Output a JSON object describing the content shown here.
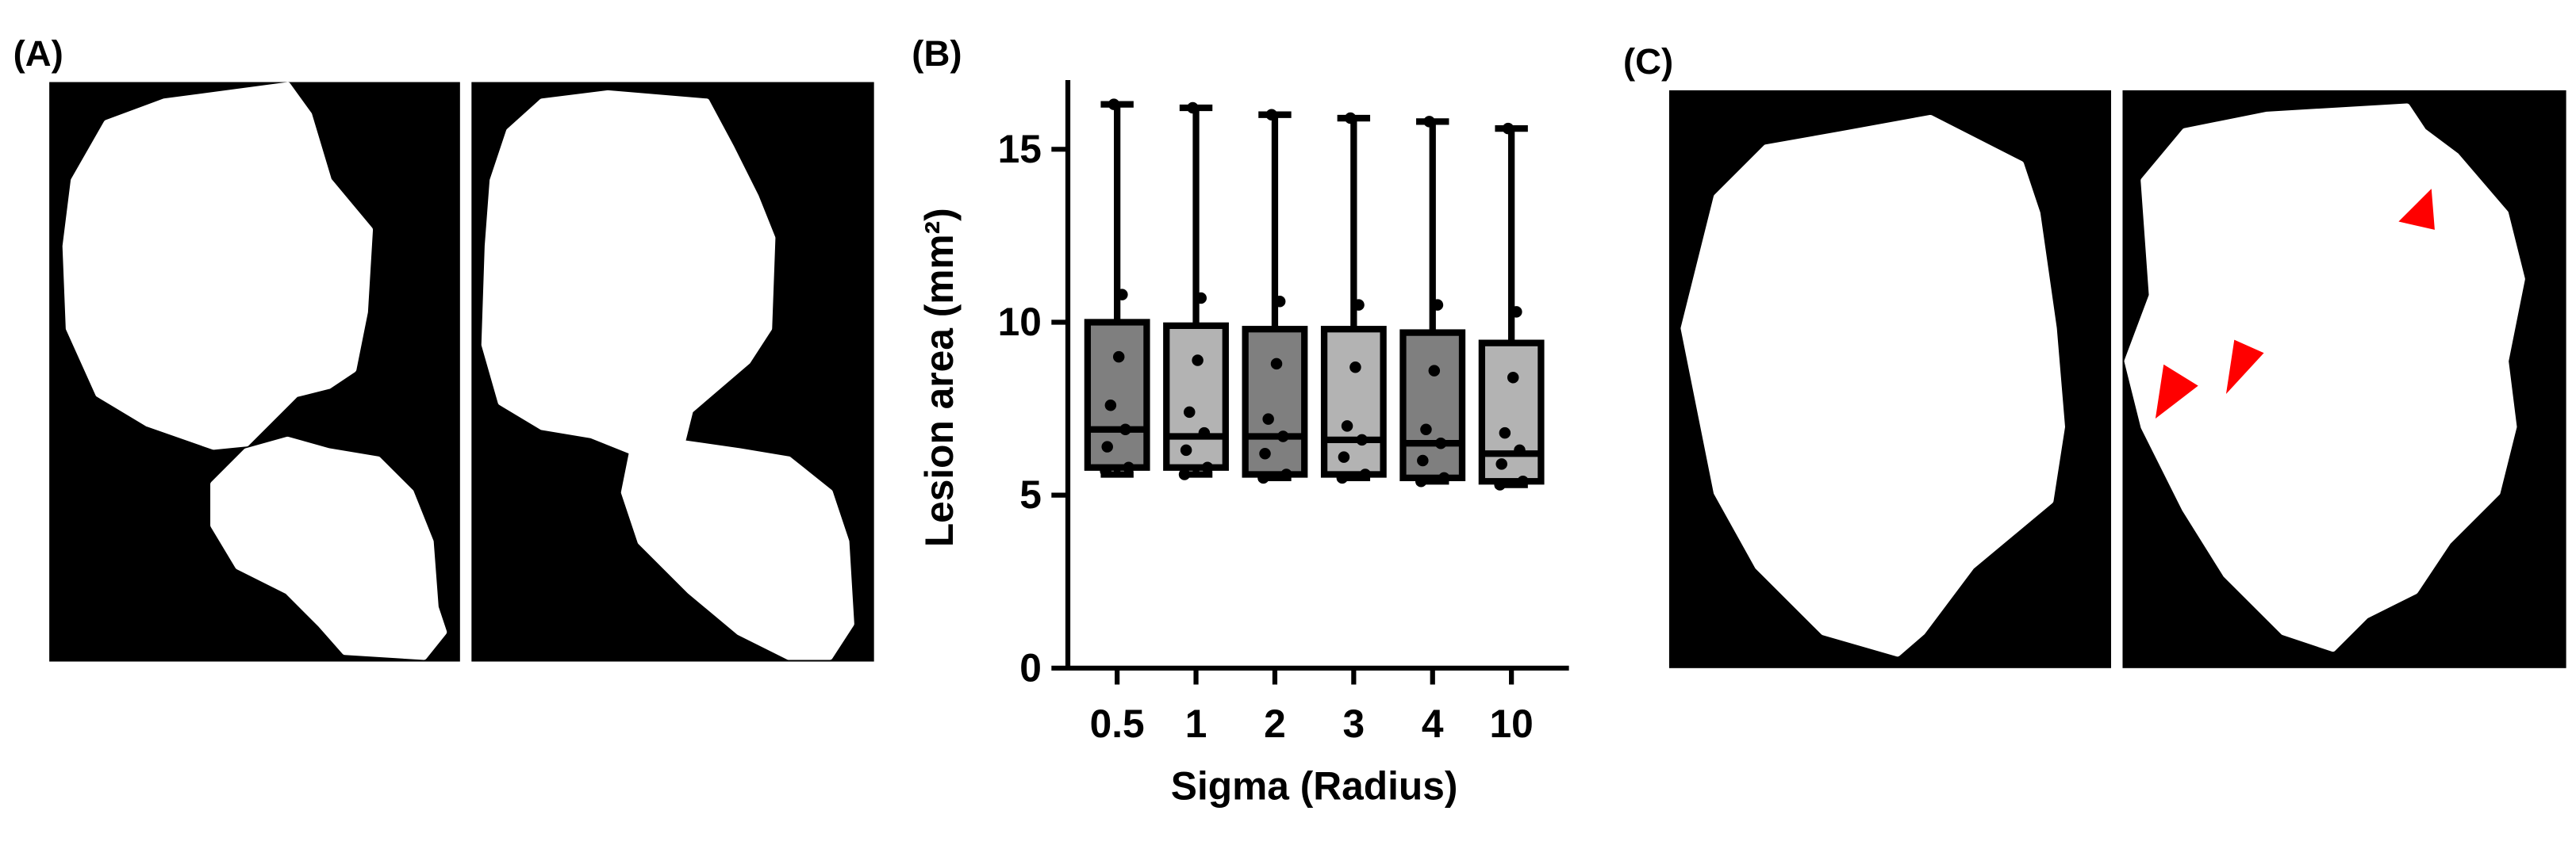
{
  "panel_labels": [
    "(A)",
    "(B)",
    "(C)"
  ],
  "chart_data": {
    "type": "box",
    "x_label": "Sigma (Radius)",
    "y_label": "Lesion area (mm²)",
    "categories": [
      "0.5",
      "1",
      "2",
      "3",
      "4",
      "10"
    ],
    "colors": [
      "#7f7f7f",
      "#b3b3b3"
    ],
    "ylim": [
      0,
      17
    ],
    "yticks": [
      0,
      5,
      10,
      15
    ],
    "boxes": [
      {
        "min": 5.6,
        "q1": 5.8,
        "median": 6.9,
        "q3": 10.0,
        "max": 16.3,
        "points": [
          16.3,
          10.8,
          9.0,
          7.6,
          6.9,
          6.4,
          5.8,
          5.7
        ]
      },
      {
        "min": 5.6,
        "q1": 5.8,
        "median": 6.7,
        "q3": 9.9,
        "max": 16.2,
        "points": [
          16.2,
          10.7,
          8.9,
          7.4,
          6.8,
          6.3,
          5.8,
          5.6
        ]
      },
      {
        "min": 5.5,
        "q1": 5.6,
        "median": 6.7,
        "q3": 9.8,
        "max": 16.0,
        "points": [
          16.0,
          10.6,
          8.8,
          7.2,
          6.7,
          6.2,
          5.6,
          5.5
        ]
      },
      {
        "min": 5.5,
        "q1": 5.6,
        "median": 6.6,
        "q3": 9.8,
        "max": 15.9,
        "points": [
          15.9,
          10.5,
          8.7,
          7.0,
          6.6,
          6.1,
          5.6,
          5.5
        ]
      },
      {
        "min": 5.4,
        "q1": 5.5,
        "median": 6.5,
        "q3": 9.7,
        "max": 15.8,
        "points": [
          15.8,
          10.5,
          8.6,
          6.9,
          6.5,
          6.0,
          5.5,
          5.4
        ]
      },
      {
        "min": 5.3,
        "q1": 5.4,
        "median": 6.2,
        "q3": 9.4,
        "max": 15.6,
        "points": [
          15.6,
          10.3,
          8.4,
          6.8,
          6.3,
          5.9,
          5.4,
          5.3
        ]
      }
    ]
  }
}
